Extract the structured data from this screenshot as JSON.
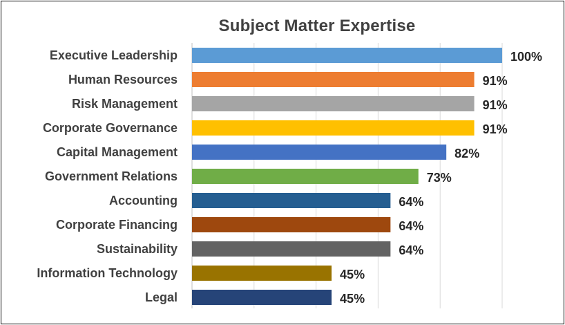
{
  "chart_data": {
    "type": "bar",
    "orientation": "horizontal",
    "title": "Subject Matter Expertise",
    "xlabel": "",
    "ylabel": "",
    "xlim": [
      0,
      100
    ],
    "grid": true,
    "legend": "none",
    "categories": [
      "Executive Leadership",
      "Human Resources",
      "Risk Management",
      "Corporate Governance",
      "Capital Management",
      "Government Relations",
      "Accounting",
      "Corporate Financing",
      "Sustainability",
      "Information Technology",
      "Legal"
    ],
    "values": [
      100,
      91,
      91,
      91,
      82,
      73,
      64,
      64,
      64,
      45,
      45
    ],
    "value_labels": [
      "100%",
      "91%",
      "91%",
      "91%",
      "82%",
      "73%",
      "64%",
      "64%",
      "64%",
      "45%",
      "45%"
    ],
    "colors": [
      "#5B9BD5",
      "#ED7D31",
      "#A5A5A5",
      "#FFC000",
      "#4472C4",
      "#70AD47",
      "#255E91",
      "#9E480E",
      "#636363",
      "#997300",
      "#264478"
    ]
  }
}
